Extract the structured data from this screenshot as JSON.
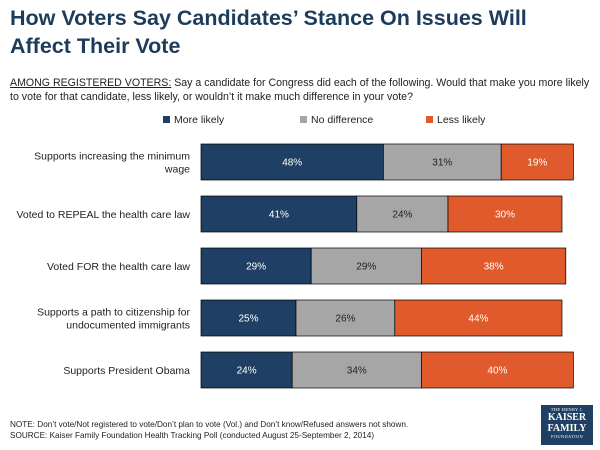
{
  "title": "How Voters Say Candidates’ Stance On Issues Will Affect Their Vote",
  "subtitle_lead": "AMONG REGISTERED VOTERS:",
  "subtitle_rest": " Say a candidate for Congress did each of the following.  Would that make you more likely to vote for that candidate, less likely, or wouldn’t it make much difference in your vote?",
  "note": "NOTE: Don’t vote/Not registered to vote/Don’t plan to vote (Vol.) and Don’t know/Refused answers not shown.",
  "source": "SOURCE: Kaiser Family Foundation Health Tracking Poll (conducted August 25-September 2, 2014)",
  "logo": {
    "line1": "THE HENRY J.",
    "line2": "KAISER",
    "line3": "FAMILY",
    "line4": "FOUNDATION"
  },
  "colors": {
    "more": "#1f3f64",
    "nodiff": "#a6a6a6",
    "less": "#e05a2b"
  },
  "chart_data": {
    "type": "bar",
    "orientation": "horizontal",
    "stacked": true,
    "title": "How Voters Say Candidates’ Stance On Issues Will Affect Their Vote",
    "xlabel": "",
    "ylabel": "",
    "xlim": [
      0,
      100
    ],
    "legend_position": "top",
    "categories": [
      [
        "Supports increasing the minimum",
        "wage"
      ],
      [
        "Voted to REPEAL the health care law"
      ],
      [
        "Voted FOR the health care law"
      ],
      [
        "Supports a path to citizenship for",
        "undocumented immigrants"
      ],
      [
        "Supports President Obama"
      ]
    ],
    "series": [
      {
        "name": "More likely",
        "values": [
          48,
          41,
          29,
          25,
          24
        ]
      },
      {
        "name": "No difference",
        "values": [
          31,
          24,
          29,
          26,
          34
        ]
      },
      {
        "name": "Less likely",
        "values": [
          19,
          30,
          38,
          44,
          40
        ]
      }
    ]
  }
}
